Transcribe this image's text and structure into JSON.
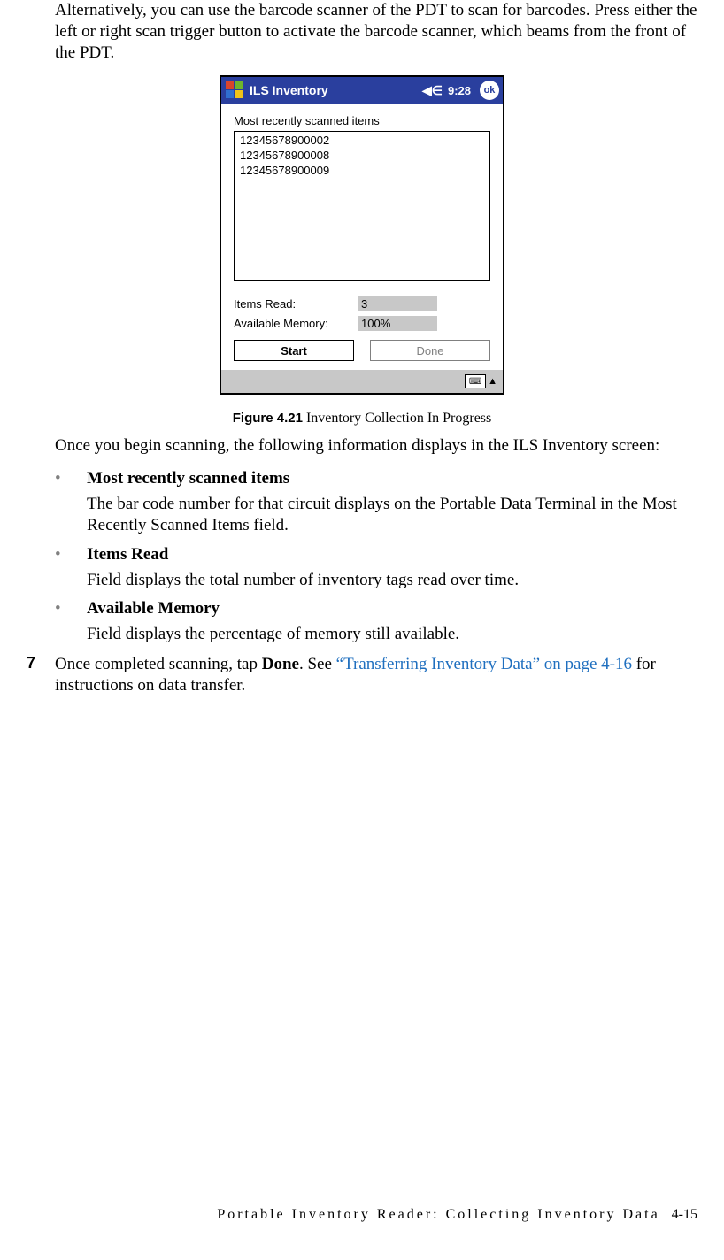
{
  "intro": "Alternatively, you can use the barcode scanner of the PDT to scan for barcodes. Press either the left or right scan trigger button to activate the barcode scanner, which beams from the front of the PDT.",
  "pdt": {
    "title": "ILS Inventory",
    "time": "9:28",
    "ok": "ok",
    "list_label": "Most recently scanned items",
    "items": [
      "12345678900002",
      "12345678900008",
      "12345678900009"
    ],
    "items_read_label": "Items Read:",
    "items_read_value": "3",
    "avail_mem_label": "Available Memory:",
    "avail_mem_value": "100%",
    "start_label": "Start",
    "done_label": "Done",
    "titlebar_bg": "#2a3f9e",
    "disabled_bg": "#c8c8c8"
  },
  "figure": {
    "number": "Figure 4.21",
    "caption": "Inventory Collection In Progress"
  },
  "post_figure": "Once you begin scanning, the following information displays in the ILS Inventory screen:",
  "bullets": [
    {
      "head": "Most recently scanned items",
      "body": "The bar code number for that circuit displays on the Portable Data Terminal in the Most Recently Scanned Items field."
    },
    {
      "head": "Items Read",
      "body": "Field displays the total number of inventory tags read over time."
    },
    {
      "head": "Available Memory",
      "body": "Field displays the percentage of memory still available."
    }
  ],
  "step": {
    "num": "7",
    "pre": "Once completed scanning, tap ",
    "bold": "Done",
    "mid": ". See ",
    "link": "“Transferring Inventory Data” on page 4-16",
    "post": " for instructions on data transfer."
  },
  "footer": {
    "text": "Portable Inventory Reader: Collecting Inventory Data",
    "page": "4-15"
  }
}
